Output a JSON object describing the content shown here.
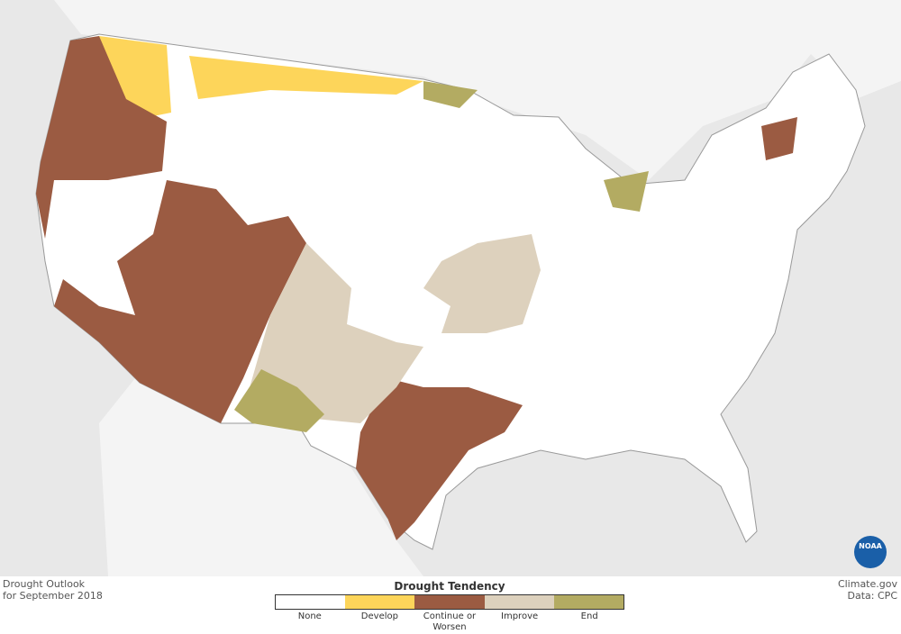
{
  "header": {
    "title": "Drought Outlook",
    "subtitle": "for September 2018"
  },
  "legend": {
    "title": "Drought Tendency",
    "items": [
      {
        "label": "None",
        "color": "#ffffff"
      },
      {
        "label": "Develop",
        "color": "#fdd55a"
      },
      {
        "label": "Continue or Worsen",
        "color": "#9b5b42"
      },
      {
        "label": "Improve",
        "color": "#ddd1bd"
      },
      {
        "label": "End",
        "color": "#b3ab62"
      }
    ]
  },
  "footer": {
    "credit": "Climate.gov",
    "source": "Data: CPC",
    "logo": "NOAA"
  }
}
